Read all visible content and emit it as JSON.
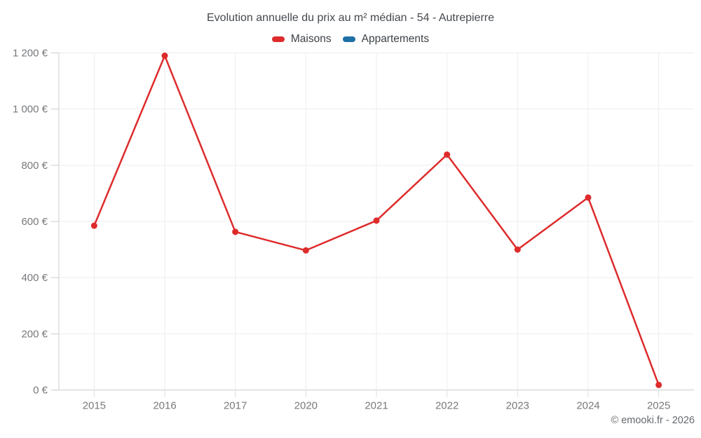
{
  "chart": {
    "title": "Evolution annuelle du prix au m² médian - 54 - Autrepierre",
    "footer": "© emooki.fr - 2026"
  },
  "chart_data": {
    "type": "line",
    "title": "Evolution annuelle du prix au m² médian - 54 - Autrepierre",
    "categories": [
      "2015",
      "2016",
      "2017",
      "2020",
      "2021",
      "2022",
      "2023",
      "2024",
      "2025"
    ],
    "series": [
      {
        "name": "Maisons",
        "color": "#de2b2b",
        "values": [
          585,
          1190,
          563,
          497,
          603,
          838,
          500,
          685,
          18
        ]
      },
      {
        "name": "Appartements",
        "color": "#1d6fa5",
        "values": []
      }
    ],
    "xlabel": "",
    "ylabel": "",
    "ylim": [
      0,
      1200
    ],
    "y_tick_step": 200,
    "y_tick_labels": [
      "0 €",
      "200 €",
      "400 €",
      "600 €",
      "800 €",
      "1 000 €",
      "1 200 €"
    ],
    "grid": true,
    "legend_position": "top",
    "marker_radius": 4.5,
    "line_width": 2.5,
    "footer": "© emooki.fr - 2026",
    "colors": {
      "grid": "#ededed",
      "axis": "#cccccc",
      "x_tick_stub": "#dddddd",
      "tick_text": "#77797c",
      "title_text": "#45494e"
    }
  }
}
